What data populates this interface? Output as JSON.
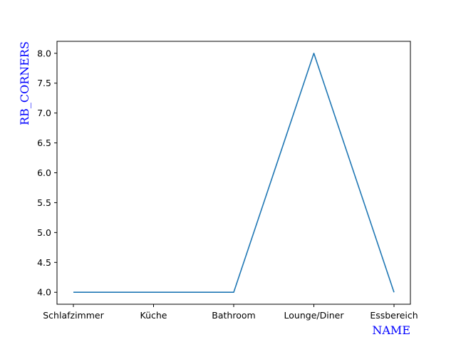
{
  "chart_data": {
    "type": "line",
    "title": "",
    "xlabel": "NAME",
    "ylabel": "RB_CORNERS",
    "categories": [
      "Schlafzimmer",
      "Küche",
      "Bathroom",
      "Lounge/Diner",
      "Essbereich"
    ],
    "series": [
      {
        "values": [
          4.0,
          4.0,
          4.0,
          8.0,
          4.0
        ],
        "color": "#1f77b4"
      }
    ],
    "yticks": [
      "4.0",
      "4.5",
      "5.0",
      "5.5",
      "6.0",
      "6.5",
      "7.0",
      "7.5",
      "8.0"
    ],
    "ylim": [
      3.8,
      8.2
    ],
    "grid": false,
    "axis_label_color": "#0000ff"
  }
}
